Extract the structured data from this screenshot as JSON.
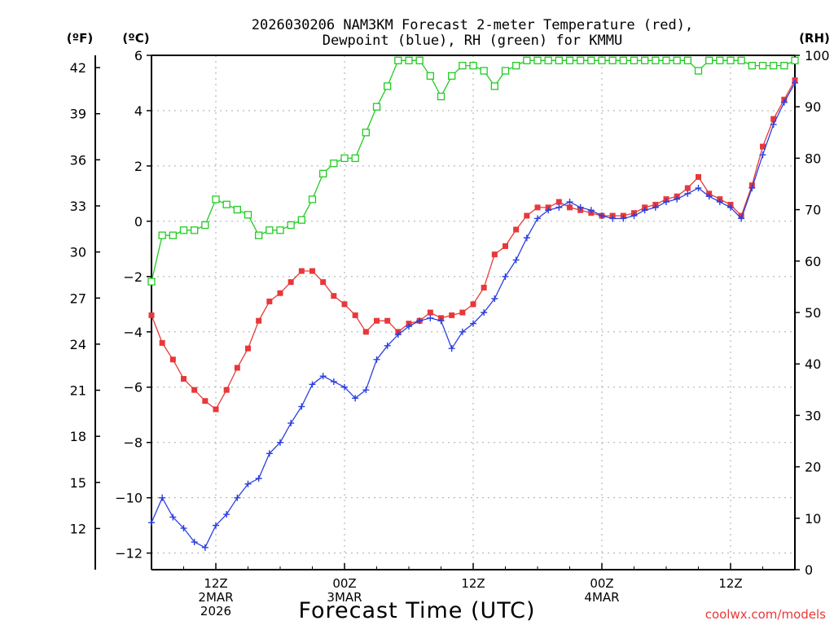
{
  "chart_data": {
    "type": "line",
    "title_line1": "2026030206 NAM3KM Forecast 2-meter Temperature (red),",
    "title_line2": "Dewpoint (blue), RH (green) for KMMU",
    "xlabel": "Forecast Time (UTC)",
    "watermark": "coolwx.com/models",
    "axes": {
      "fahrenheit": {
        "label": "(ºF)",
        "ticks": [
          "42",
          "39",
          "36",
          "33",
          "30",
          "27",
          "24",
          "21",
          "18",
          "15",
          "12"
        ],
        "tick_values": [
          42,
          39,
          36,
          33,
          30,
          27,
          24,
          21,
          18,
          15,
          12
        ]
      },
      "celsius": {
        "label": "(ºC)",
        "ticks": [
          "6",
          "4",
          "2",
          "0",
          "−2",
          "−4",
          "−6",
          "−8",
          "−10",
          "−12"
        ],
        "tick_values": [
          6,
          4,
          2,
          0,
          -2,
          -4,
          -6,
          -8,
          -10,
          -12
        ],
        "ylim": [
          -12.6,
          6.0
        ]
      },
      "rh": {
        "label": "(RH)",
        "ticks": [
          "100",
          "90",
          "80",
          "70",
          "60",
          "50",
          "40",
          "30",
          "20",
          "10",
          "0"
        ],
        "tick_values": [
          100,
          90,
          80,
          70,
          60,
          50,
          40,
          30,
          20,
          10,
          0
        ],
        "ylim": [
          0,
          100
        ]
      },
      "time": {
        "xlim_hours": [
          6,
          66
        ],
        "ticks": [
          {
            "hour": 12,
            "lines": [
              "12Z",
              "2MAR",
              "2026"
            ]
          },
          {
            "hour": 24,
            "lines": [
              "00Z",
              "3MAR"
            ]
          },
          {
            "hour": 36,
            "lines": [
              "12Z"
            ]
          },
          {
            "hour": 48,
            "lines": [
              "00Z",
              "4MAR"
            ]
          },
          {
            "hour": 60,
            "lines": [
              "12Z"
            ]
          }
        ]
      }
    },
    "series": [
      {
        "name": "Temperature",
        "units": "C",
        "color": "#e8383a",
        "marker": "filled-square",
        "x": [
          6,
          7,
          8,
          9,
          10,
          11,
          12,
          13,
          14,
          15,
          16,
          17,
          18,
          19,
          20,
          21,
          22,
          23,
          24,
          25,
          26,
          27,
          28,
          29,
          30,
          31,
          32,
          33,
          34,
          35,
          36,
          37,
          38,
          39,
          40,
          41,
          42,
          43,
          44,
          45,
          46,
          47,
          48,
          49,
          50,
          51,
          52,
          53,
          54,
          55,
          56,
          57,
          58,
          59,
          60,
          61,
          62,
          63,
          64,
          65,
          66
        ],
        "values": [
          -3.4,
          -4.4,
          -5.0,
          -5.7,
          -6.1,
          -6.5,
          -6.8,
          -6.1,
          -5.3,
          -4.6,
          -3.6,
          -2.9,
          -2.6,
          -2.2,
          -1.8,
          -1.8,
          -2.2,
          -2.7,
          -3.0,
          -3.4,
          -4.0,
          -3.6,
          -3.6,
          -4.0,
          -3.7,
          -3.6,
          -3.3,
          -3.5,
          -3.4,
          -3.3,
          -3.0,
          -2.4,
          -1.2,
          -0.9,
          -0.3,
          0.2,
          0.5,
          0.5,
          0.7,
          0.5,
          0.4,
          0.3,
          0.2,
          0.2,
          0.2,
          0.3,
          0.5,
          0.6,
          0.8,
          0.9,
          1.2,
          1.6,
          1.0,
          0.8,
          0.6,
          0.2,
          1.3,
          2.7,
          3.7,
          4.4,
          5.1
        ]
      },
      {
        "name": "Dewpoint",
        "units": "C",
        "color": "#2a3fe0",
        "marker": "plus",
        "x": [
          6,
          7,
          8,
          9,
          10,
          11,
          12,
          13,
          14,
          15,
          16,
          17,
          18,
          19,
          20,
          21,
          22,
          23,
          24,
          25,
          26,
          27,
          28,
          29,
          30,
          31,
          32,
          33,
          34,
          35,
          36,
          37,
          38,
          39,
          40,
          41,
          42,
          43,
          44,
          45,
          46,
          47,
          48,
          49,
          50,
          51,
          52,
          53,
          54,
          55,
          56,
          57,
          58,
          59,
          60,
          61,
          62,
          63,
          64,
          65,
          66
        ],
        "values": [
          -10.9,
          -10.0,
          -10.7,
          -11.1,
          -11.6,
          -11.8,
          -11.0,
          -10.6,
          -10.0,
          -9.5,
          -9.3,
          -8.4,
          -8.0,
          -7.3,
          -6.7,
          -5.9,
          -5.6,
          -5.8,
          -6.0,
          -6.4,
          -6.1,
          -5.0,
          -4.5,
          -4.1,
          -3.8,
          -3.6,
          -3.5,
          -3.6,
          -4.6,
          -4.0,
          -3.7,
          -3.3,
          -2.8,
          -2.0,
          -1.4,
          -0.6,
          0.1,
          0.4,
          0.5,
          0.7,
          0.5,
          0.4,
          0.2,
          0.1,
          0.1,
          0.2,
          0.4,
          0.5,
          0.7,
          0.8,
          1.0,
          1.2,
          0.9,
          0.7,
          0.5,
          0.1,
          1.2,
          2.4,
          3.5,
          4.3,
          5.0
        ]
      },
      {
        "name": "Relative Humidity",
        "units": "%",
        "color": "#22cc22",
        "marker": "open-square",
        "x": [
          6,
          7,
          8,
          9,
          10,
          11,
          12,
          13,
          14,
          15,
          16,
          17,
          18,
          19,
          20,
          21,
          22,
          23,
          24,
          25,
          26,
          27,
          28,
          29,
          30,
          31,
          32,
          33,
          34,
          35,
          36,
          37,
          38,
          39,
          40,
          41,
          42,
          43,
          44,
          45,
          46,
          47,
          48,
          49,
          50,
          51,
          52,
          53,
          54,
          55,
          56,
          57,
          58,
          59,
          60,
          61,
          62,
          63,
          64,
          65,
          66
        ],
        "values": [
          56,
          65,
          65,
          66,
          66,
          67,
          72,
          71,
          70,
          69,
          65,
          66,
          66,
          67,
          68,
          72,
          77,
          79,
          80,
          80,
          85,
          90,
          94,
          99,
          99,
          99,
          96,
          92,
          96,
          98,
          98,
          97,
          94,
          97,
          98,
          99,
          99,
          99,
          99,
          99,
          99,
          99,
          99,
          99,
          99,
          99,
          99,
          99,
          99,
          99,
          99,
          97,
          99,
          99,
          99,
          99,
          98,
          98,
          98,
          98,
          99
        ]
      }
    ]
  }
}
